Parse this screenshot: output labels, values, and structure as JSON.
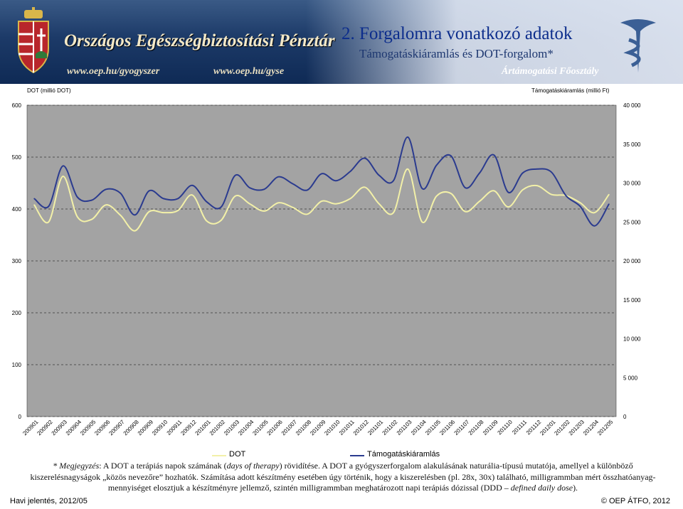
{
  "header": {
    "org_name": "Országos Egészségbiztosítási Pénztár",
    "slide_title": "2. Forgalomra vonatkozó adatok",
    "slide_subtitle": "Támogatáskiáramlás és DOT-forgalom*",
    "url_1": "www.oep.hu/gyogyszer",
    "url_2": "www.oep.hu/gyse",
    "department": "Ártámogatási Főosztály"
  },
  "colors": {
    "dot_series": "#f2f0a8",
    "support_series": "#2b3b8f",
    "plot_background": "#a3a3a3",
    "gridline": "#000000",
    "banner": "#1c3a68"
  },
  "chart_data": {
    "type": "line",
    "left_axis_title": "DOT (millió DOT)",
    "right_axis_title": "Támogatáskiáramlás (millió Ft)",
    "left_ticks": [
      "600",
      "500",
      "400",
      "300",
      "200",
      "100",
      "0"
    ],
    "right_ticks": [
      "40 000",
      "35 000",
      "30 000",
      "25 000",
      "20 000",
      "15 000",
      "10 000",
      "5 000",
      "0"
    ],
    "ylim_left": [
      0,
      600
    ],
    "ylim_right": [
      0,
      40000
    ],
    "grid": true,
    "legend_position": "bottom",
    "categories": [
      "200901",
      "200902",
      "200903",
      "200904",
      "200905",
      "200906",
      "200907",
      "200908",
      "200909",
      "200910",
      "200911",
      "200912",
      "201001",
      "201002",
      "201003",
      "201004",
      "201005",
      "201006",
      "201007",
      "201008",
      "201009",
      "201010",
      "201011",
      "201012",
      "201101",
      "201102",
      "201103",
      "201104",
      "201105",
      "201106",
      "201107",
      "201108",
      "201109",
      "201110",
      "201111",
      "201112",
      "201201",
      "201202",
      "201203",
      "201204",
      "201205"
    ],
    "series": [
      {
        "name": "DOT",
        "axis": "left",
        "values": [
          408,
          375,
          463,
          385,
          380,
          408,
          388,
          358,
          395,
          393,
          397,
          427,
          377,
          378,
          425,
          410,
          396,
          412,
          403,
          390,
          415,
          410,
          420,
          442,
          410,
          393,
          477,
          375,
          425,
          430,
          395,
          415,
          435,
          404,
          437,
          445,
          428,
          426,
          412,
          393,
          428
        ]
      },
      {
        "name": "Támogatáskiáramlás",
        "axis": "right",
        "values": [
          28000,
          27000,
          32200,
          28200,
          27800,
          29200,
          28700,
          25900,
          29000,
          28000,
          28000,
          29700,
          27600,
          26900,
          31000,
          29400,
          29200,
          30800,
          29900,
          29100,
          31200,
          30300,
          31500,
          33200,
          31000,
          30300,
          35900,
          29300,
          32300,
          33500,
          29400,
          31300,
          33600,
          28800,
          31300,
          31800,
          31400,
          28400,
          27000,
          24500,
          27300
        ]
      }
    ]
  },
  "legend": {
    "dot_label": "DOT",
    "support_label": "Támogatáskiáramlás"
  },
  "note": {
    "prefix": "* Megjegyzés",
    "text_1": ": A DOT a terápiás napok számának (",
    "italic_1": "days of therapy",
    "text_2": ") rövidítése. A DOT a gyógyszerforgalom alakulásának naturália-típusú mutatója, amellyel a különböző kiszerelésnagyságok „közös nevezőre” hozhatók. Számítása adott készítmény esetében úgy történik, hogy a kiszerelésben (pl. 28x, 30x) található, milligrammban mért összhatóanyag-mennyiséget elosztjuk a készítményre jellemző, szintén milligrammban meghatározott napi terápiás dózissal (DDD – ",
    "italic_2": "defined daily dose",
    "text_3": ")."
  },
  "footer": {
    "left": "Havi jelentés, 2012/05",
    "right": "© OEP ÁTFO, 2012"
  }
}
